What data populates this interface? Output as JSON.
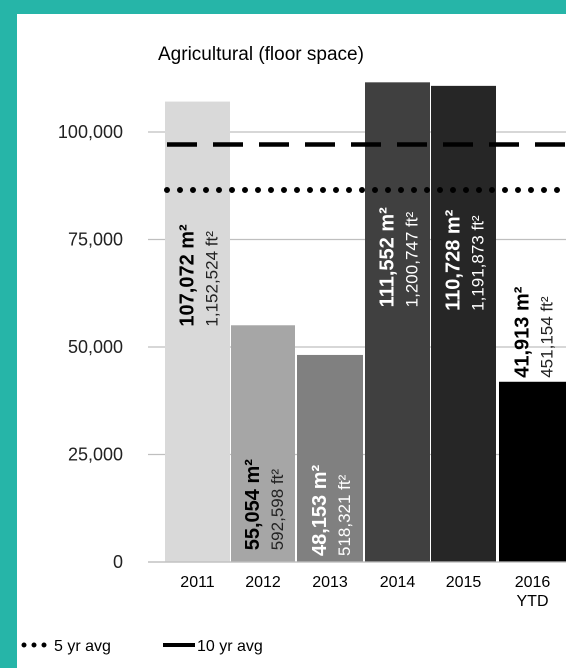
{
  "chart_data": {
    "type": "bar",
    "title": "Agricultural  (floor space)",
    "title_paren_open": "(",
    "title_paren_close": ")",
    "categories": [
      "2011",
      "2012",
      "2013",
      "2014",
      "2015",
      "2016 YTD"
    ],
    "category_lines": [
      [
        "2011"
      ],
      [
        "2012"
      ],
      [
        "2013"
      ],
      [
        "2014"
      ],
      [
        "2015"
      ],
      [
        "2016",
        "YTD"
      ]
    ],
    "values_m2": [
      107072,
      55054,
      48153,
      111552,
      110728,
      41913
    ],
    "labels_m2": [
      "107,072 m²",
      "55,054 m²",
      "48,153 m²",
      "111,552 m²",
      "110,728 m²",
      "41,913 m²"
    ],
    "labels_ft2": [
      "1,152,524  ft²",
      "592,598  ft²",
      "518,321  ft²",
      "1,200,747  ft²",
      "1,191,873  ft²",
      "451,154  ft²"
    ],
    "bar_colors": [
      "#d9d9d9",
      "#a6a6a6",
      "#808080",
      "#404040",
      "#262626",
      "#000000"
    ],
    "m2_label_colors": [
      "#000000",
      "#000000",
      "#ffffff",
      "#ffffff",
      "#ffffff",
      "#000000"
    ],
    "ft2_label_colors": [
      "#222222",
      "#222222",
      "#ffffff",
      "#ffffff",
      "#ffffff",
      "#222222"
    ],
    "y_ticks": [
      0,
      25000,
      50000,
      75000,
      100000
    ],
    "y_tick_labels": [
      "0",
      "25,000",
      "50,000",
      "75,000",
      "100,000"
    ],
    "ylim": [
      0,
      125000
    ],
    "grid": true,
    "reference_lines": [
      {
        "name": "5 yr avg",
        "value": 86500,
        "style": "dotted"
      },
      {
        "name": "10 yr avg",
        "value": 97100,
        "style": "dashed"
      }
    ],
    "legend": {
      "placement": "bottom-left",
      "entries": [
        "5 yr avg",
        "10 yr avg"
      ]
    }
  }
}
